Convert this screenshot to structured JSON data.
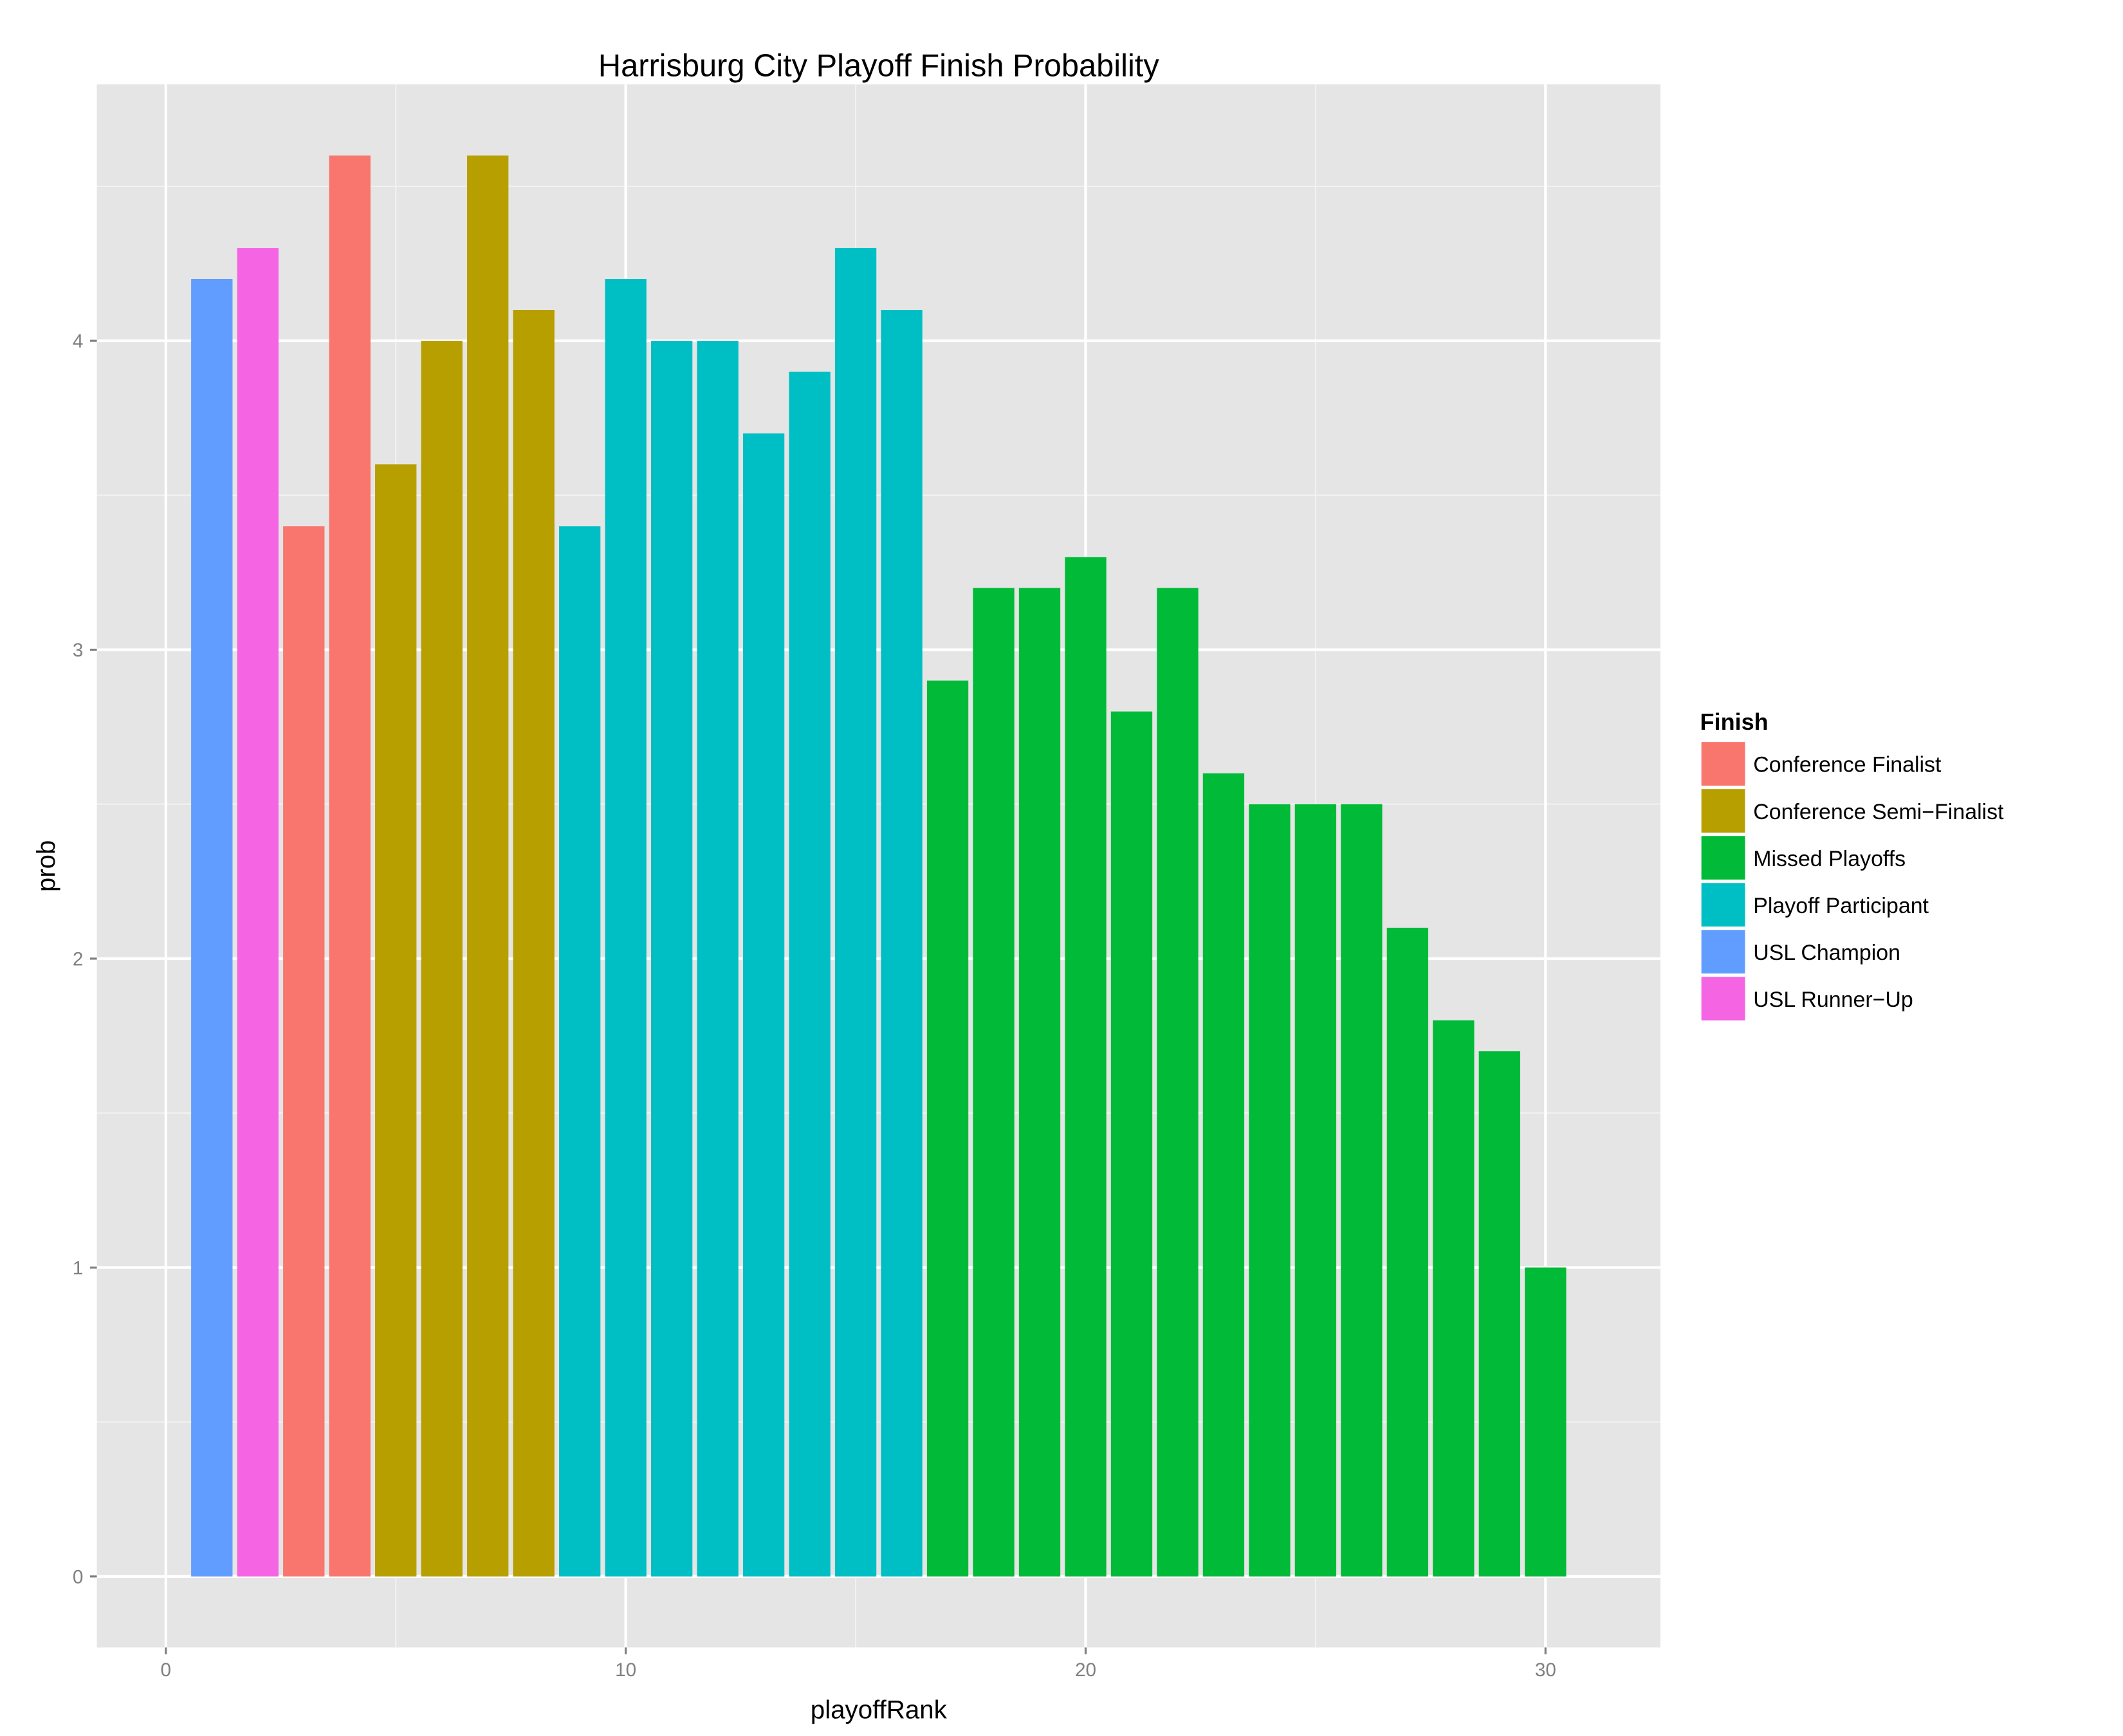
{
  "chart_data": {
    "type": "bar",
    "title": "Harrisburg City Playoff Finish Probability",
    "xlabel": "playoffRank",
    "ylabel": "prob",
    "xlim": [
      -1.5,
      32.5
    ],
    "ylim": [
      -0.23,
      4.83
    ],
    "xticks": [
      0,
      10,
      20,
      30
    ],
    "yticks": [
      0,
      1,
      2,
      3,
      4
    ],
    "grid": true,
    "legend": {
      "title": "Finish",
      "placement": "right",
      "entries": [
        {
          "label": "Conference Finalist",
          "color": "#F8766D"
        },
        {
          "label": "Conference Semi−Finalist",
          "color": "#B79F00"
        },
        {
          "label": "Missed Playoffs",
          "color": "#00BA38"
        },
        {
          "label": "Playoff Participant",
          "color": "#00BFC4"
        },
        {
          "label": "USL Champion",
          "color": "#619CFF"
        },
        {
          "label": "USL Runner−Up",
          "color": "#F564E3"
        }
      ]
    },
    "x": [
      1,
      2,
      3,
      4,
      5,
      6,
      7,
      8,
      9,
      10,
      11,
      12,
      13,
      14,
      15,
      16,
      17,
      18,
      19,
      20,
      21,
      22,
      23,
      24,
      25,
      26,
      27,
      28,
      29,
      30
    ],
    "values": [
      4.2,
      4.3,
      3.4,
      4.6,
      3.6,
      4.0,
      4.6,
      4.1,
      3.4,
      4.2,
      4.0,
      4.0,
      3.7,
      3.9,
      4.3,
      4.1,
      2.9,
      3.2,
      3.2,
      3.3,
      2.8,
      3.2,
      2.6,
      2.5,
      2.5,
      2.5,
      2.1,
      1.8,
      1.7,
      1.0
    ],
    "finish": [
      4,
      5,
      0,
      0,
      1,
      1,
      1,
      1,
      3,
      3,
      3,
      3,
      3,
      3,
      3,
      3,
      2,
      2,
      2,
      2,
      2,
      2,
      2,
      2,
      2,
      2,
      2,
      2,
      2,
      2
    ]
  }
}
